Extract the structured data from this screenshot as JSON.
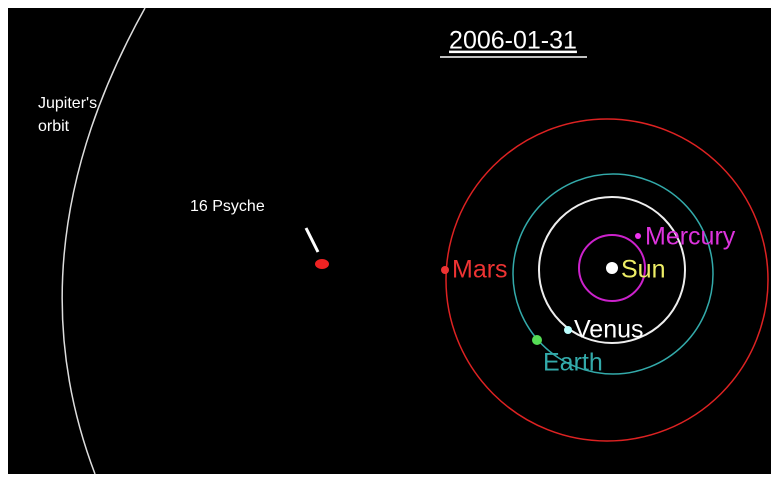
{
  "date": "2006-01-31",
  "jupiter_orbit": [
    "Jupiter's",
    "orbit"
  ],
  "psyche": "16 Psyche",
  "planets": {
    "mercury": "Mercury",
    "sun": "Sun",
    "venus": "Venus",
    "earth": "Earth",
    "mars": "Mars"
  }
}
